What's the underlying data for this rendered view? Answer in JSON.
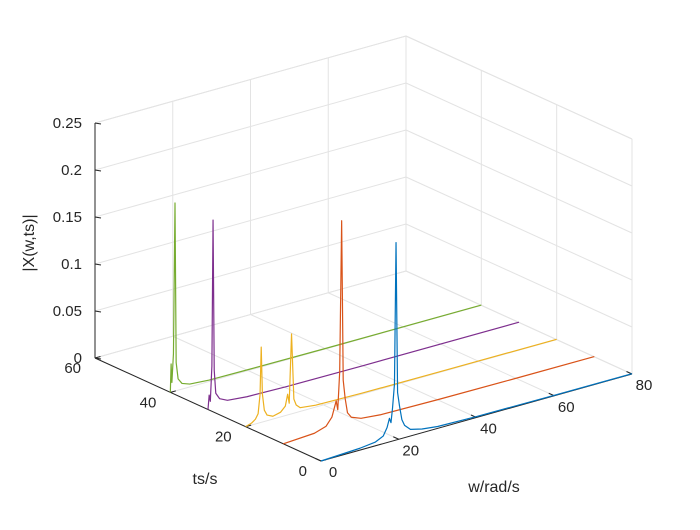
{
  "chart_data": {
    "type": "line",
    "title": "",
    "xlabel": "w/rad/s",
    "ylabel": "ts/s",
    "zlabel": "|X(w,ts)|",
    "xlim": [
      0,
      80
    ],
    "ylim": [
      0,
      60
    ],
    "zlim": [
      0,
      0.25
    ],
    "grid": true,
    "legend": "none",
    "x_ticks": [
      "0",
      "20",
      "40",
      "60",
      "80"
    ],
    "y_ticks": [
      "0",
      "20",
      "40",
      "60"
    ],
    "z_ticks": [
      "0",
      "0.05",
      "0.1",
      "0.15",
      "0.2",
      "0.25"
    ],
    "series": [
      {
        "ts": 0,
        "color": "#0072BD",
        "points": [
          [
            0,
            0
          ],
          [
            10,
            0.002
          ],
          [
            14,
            0.004
          ],
          [
            16,
            0.008
          ],
          [
            17,
            0.016
          ],
          [
            17.6,
            0.025
          ],
          [
            18,
            0.02
          ],
          [
            18.4,
            0.035
          ],
          [
            18.9,
            0.06
          ],
          [
            19.3,
            0.21
          ],
          [
            19.7,
            0.05
          ],
          [
            20.2,
            0.035
          ],
          [
            20.8,
            0.02
          ],
          [
            21.5,
            0.013
          ],
          [
            23,
            0.007
          ],
          [
            26,
            0.004
          ],
          [
            30,
            0.002
          ],
          [
            40,
            0.001
          ],
          [
            60,
            0.0005
          ],
          [
            80,
            0.0003
          ]
        ]
      },
      {
        "ts": 10,
        "color": "#D95319",
        "points": [
          [
            0,
            0
          ],
          [
            8,
            0.002
          ],
          [
            11,
            0.006
          ],
          [
            12.5,
            0.014
          ],
          [
            13.6,
            0.03
          ],
          [
            14,
            0.02
          ],
          [
            14.5,
            0.06
          ],
          [
            15,
            0.22
          ],
          [
            15.4,
            0.05
          ],
          [
            15.9,
            0.03
          ],
          [
            16.5,
            0.014
          ],
          [
            17.5,
            0.008
          ],
          [
            20,
            0.004
          ],
          [
            25,
            0.002
          ],
          [
            40,
            0.001
          ],
          [
            60,
            0.0005
          ],
          [
            80,
            0.0003
          ]
        ]
      },
      {
        "ts": 20,
        "color": "#EDB120",
        "points": [
          [
            0,
            0
          ],
          [
            1.5,
            0.002
          ],
          [
            2.5,
            0.005
          ],
          [
            3.2,
            0.01
          ],
          [
            3.7,
            0.03
          ],
          [
            4,
            0.08
          ],
          [
            4.3,
            0.03
          ],
          [
            4.8,
            0.012
          ],
          [
            5.5,
            0.006
          ],
          [
            7,
            0.003
          ],
          [
            9,
            0.005
          ],
          [
            10.2,
            0.01
          ],
          [
            10.8,
            0.022
          ],
          [
            11.2,
            0.012
          ],
          [
            11.8,
            0.085
          ],
          [
            12.4,
            0.015
          ],
          [
            13,
            0.008
          ],
          [
            14,
            0.004
          ],
          [
            18,
            0.002
          ],
          [
            30,
            0.001
          ],
          [
            50,
            0.0006
          ],
          [
            80,
            0.0004
          ]
        ]
      },
      {
        "ts": 30,
        "color": "#7E2F8E",
        "points": [
          [
            0,
            0
          ],
          [
            0.3,
            0.015
          ],
          [
            0.6,
            0.008
          ],
          [
            1,
            0.045
          ],
          [
            1.3,
            0.2
          ],
          [
            1.6,
            0.04
          ],
          [
            2,
            0.015
          ],
          [
            3,
            0.008
          ],
          [
            5,
            0.004
          ],
          [
            10,
            0.002
          ],
          [
            20,
            0.001
          ],
          [
            40,
            0.0005
          ],
          [
            80,
            0.0003
          ]
        ]
      },
      {
        "ts": 40,
        "color": "#77AC30",
        "points": [
          [
            0,
            0
          ],
          [
            0.2,
            0.03
          ],
          [
            0.4,
            0.01
          ],
          [
            0.8,
            0.04
          ],
          [
            1.2,
            0.2
          ],
          [
            1.5,
            0.03
          ],
          [
            2,
            0.012
          ],
          [
            3,
            0.006
          ],
          [
            5,
            0.003
          ],
          [
            10,
            0.0015
          ],
          [
            20,
            0.001
          ],
          [
            40,
            0.0005
          ],
          [
            80,
            0.0003
          ]
        ]
      }
    ]
  }
}
